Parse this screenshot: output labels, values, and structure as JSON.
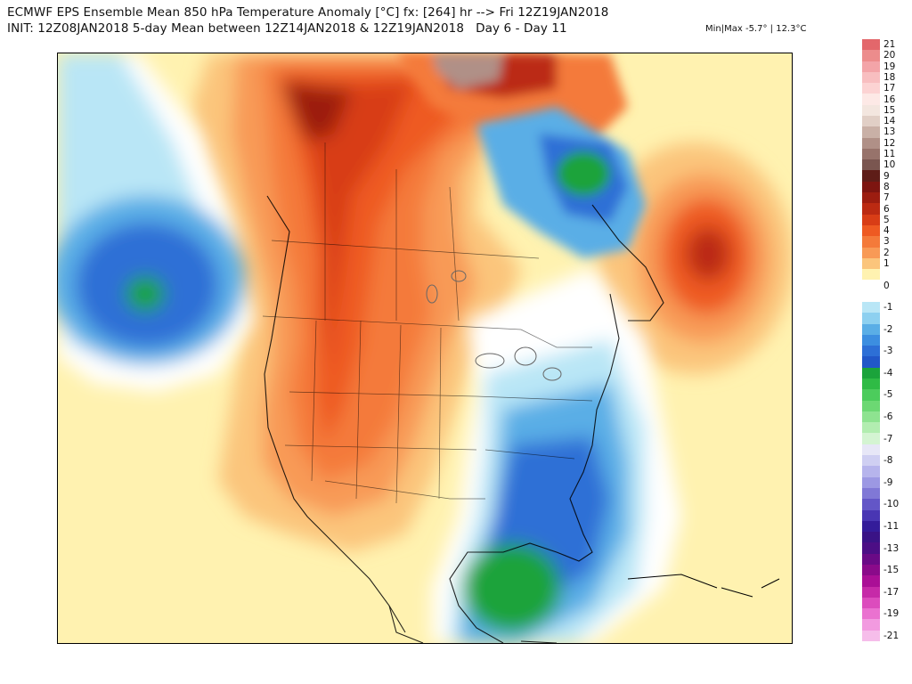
{
  "header": {
    "title_line1": "ECMWF EPS Ensemble Mean 850 hPa Temperature Anomaly [°C] fx: [264] hr --> Fri 12Z19JAN2018",
    "title_line2": "INIT: 12Z08JAN2018 5-day Mean between 12Z14JAN2018 & 12Z19JAN2018   Day 6 - Day 11",
    "minmax": "Min|Max -5.7° | 12.3°C"
  },
  "map": {
    "type": "temperature-anomaly-map",
    "region": "North America",
    "features": [
      "state-boundaries",
      "country-boundaries",
      "coastlines",
      "lakes"
    ]
  },
  "legend": {
    "entries": [
      {
        "label": "21",
        "color": "#e3676b"
      },
      {
        "label": "20",
        "color": "#ec8c8c"
      },
      {
        "label": "19",
        "color": "#f3a4a8"
      },
      {
        "label": "18",
        "color": "#f8bec0"
      },
      {
        "label": "17",
        "color": "#fcd3d3"
      },
      {
        "label": "16",
        "color": "#fde9e6"
      },
      {
        "label": "15",
        "color": "#f3e6df"
      },
      {
        "label": "14",
        "color": "#e1cfc6"
      },
      {
        "label": "13",
        "color": "#c9b0a6"
      },
      {
        "label": "12",
        "color": "#b09087"
      },
      {
        "label": "11",
        "color": "#97736b"
      },
      {
        "label": "10",
        "color": "#7a5650"
      },
      {
        "label": "9",
        "color": "#5e1d18"
      },
      {
        "label": "8",
        "color": "#7d1510"
      },
      {
        "label": "7",
        "color": "#9c1d10"
      },
      {
        "label": "6",
        "color": "#bb2a12"
      },
      {
        "label": "5",
        "color": "#d83d16"
      },
      {
        "label": "4",
        "color": "#ee5a22"
      },
      {
        "label": "3",
        "color": "#f47a3a"
      },
      {
        "label": "2",
        "color": "#f89a56"
      },
      {
        "label": "1",
        "color": "#fbc57c"
      },
      {
        "label": "",
        "color": "#fff2b0"
      },
      {
        "label": "0",
        "color": "#ffffff"
      },
      {
        "label": "",
        "color": "#ffffff"
      },
      {
        "label": "-1",
        "color": "#b9e6f6"
      },
      {
        "label": "",
        "color": "#8dd0f0"
      },
      {
        "label": "-2",
        "color": "#5aaee6"
      },
      {
        "label": "",
        "color": "#3c8ee0"
      },
      {
        "label": "-3",
        "color": "#2d6fd6"
      },
      {
        "label": "",
        "color": "#2157c8"
      },
      {
        "label": "-4",
        "color": "#1ba33b"
      },
      {
        "label": "",
        "color": "#2fbb45"
      },
      {
        "label": "-5",
        "color": "#4ccc5c"
      },
      {
        "label": "",
        "color": "#6cd873"
      },
      {
        "label": "-6",
        "color": "#8ee390"
      },
      {
        "label": "",
        "color": "#b2edb0"
      },
      {
        "label": "-7",
        "color": "#d4f4d2"
      },
      {
        "label": "",
        "color": "#e7e7f7"
      },
      {
        "label": "-8",
        "color": "#cfcff2"
      },
      {
        "label": "",
        "color": "#b6b4ec"
      },
      {
        "label": "-9",
        "color": "#9c98e3"
      },
      {
        "label": "",
        "color": "#8078d6"
      },
      {
        "label": "-10",
        "color": "#6356c7"
      },
      {
        "label": "",
        "color": "#4936b3"
      },
      {
        "label": "-11",
        "color": "#341c9a"
      },
      {
        "label": "",
        "color": "#3a1386"
      },
      {
        "label": "-13",
        "color": "#4c0e85"
      },
      {
        "label": "",
        "color": "#6a0a86"
      },
      {
        "label": "-15",
        "color": "#8a0a8a"
      },
      {
        "label": "",
        "color": "#aa0f96"
      },
      {
        "label": "-17",
        "color": "#c62aa8"
      },
      {
        "label": "",
        "color": "#dc4cbd"
      },
      {
        "label": "-19",
        "color": "#ea72d0"
      },
      {
        "label": "",
        "color": "#f29ae0"
      },
      {
        "label": "-21",
        "color": "#f6bdea"
      }
    ]
  }
}
